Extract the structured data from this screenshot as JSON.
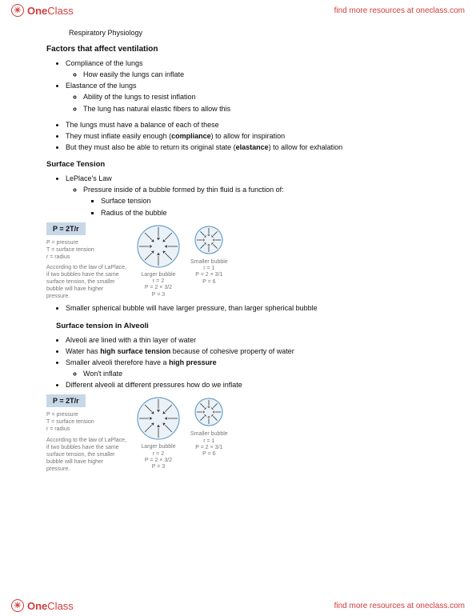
{
  "header": {
    "brand_bold": "One",
    "brand_rest": "Class",
    "link_text": "find more resources at oneclass.com"
  },
  "doc": {
    "page_heading": "Respiratory Physiology",
    "section1": {
      "title": "Factors that affect ventilation",
      "b1": "Compliance of the lungs",
      "b1a": "How easily the lungs can inflate",
      "b2": "Elastance of the lungs",
      "b2a": "Ability of the lungs to resist inflation",
      "b2b": "The lung has natural elastic fibers to allow this",
      "b3": "The lungs must have a balance of each of these",
      "b4_pre": "They must inflate easily enough (",
      "b4_bold": "compliance",
      "b4_post": ") to allow for inspiration",
      "b5_pre": "But they must also be able to return its original state (",
      "b5_bold": "elastance",
      "b5_post": ") to allow for exhalation"
    },
    "section2": {
      "title": "Surface Tension",
      "b1": "LePlace's Law",
      "b1a": "Pressure inside of a bubble formed by thin fluid is a function of:",
      "b1a1": "Surface tension",
      "b1a2": "Radius of the bubble",
      "conclusion": "Smaller spherical bubble will have larger pressure, than larger spherical bubble"
    },
    "diagram": {
      "formula": "P = 2T/r",
      "legend_p": "P = pressure",
      "legend_t": "T = surface tension",
      "legend_r": "r = radius",
      "caption": "According to the law of LaPlace, if two bubbles have the same surface tension, the smaller bubble will have higher pressure.",
      "large_label": "Larger bubble",
      "large_l2": "r = 2",
      "large_l3": "P = 2 × 3/2",
      "large_l4": "P = 3",
      "small_label": "Smaller bubble",
      "small_l2": "r = 1",
      "small_l3": "P = 2 × 3/1",
      "small_l4": "P = 6"
    },
    "section3": {
      "title": "Surface tension in Alveoli",
      "b1": "Alveoli are lined with a thin layer of water",
      "b2_pre": "Water has ",
      "b2_bold": "high surface tension",
      "b2_post": " because of cohesive property of water",
      "b3_pre": "Smaller alveoli therefore have a ",
      "b3_bold": "high pressure",
      "b3a": "Won't inflate",
      "b4": "Different alveoli at different pressures how do we inflate"
    }
  },
  "style": {
    "bubble_fill": "#eaf2f8",
    "bubble_stroke": "#6a9fc9",
    "formula_bg": "#c7d7e6",
    "accent": "#d33b3b",
    "large_r": 26,
    "small_r": 17
  }
}
